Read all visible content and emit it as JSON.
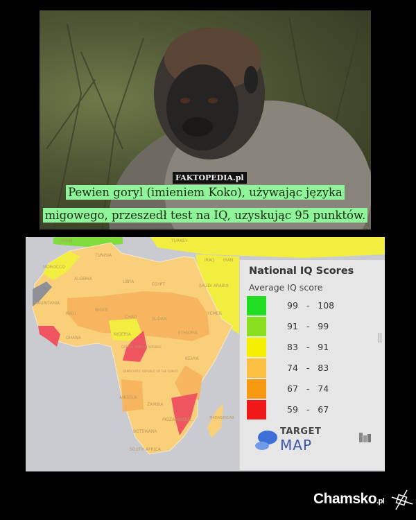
{
  "photo": {
    "watermark": "FAKTOPEDIA.pl",
    "caption_lines": [
      "Pewien goryl (imieniem Koko), używając języka",
      "migowego, przeszedł test na IQ, uzyskując 95 punktów."
    ]
  },
  "map": {
    "country_labels": [
      "TUNISIA",
      "MOROCCO",
      "ALGERIA",
      "LIBYA",
      "EGYPT",
      "SAUDI ARABIA",
      "IRAQ",
      "IRAN",
      "TURKEY",
      "SPAIN",
      "YEMEN",
      "MAURITANIA",
      "MALI",
      "NIGER",
      "CHAD",
      "SUDAN",
      "ETHIOPIA",
      "NIGERIA",
      "GHANA",
      "CENTRAL AFRICAN REPUBLIC",
      "KENYA",
      "DEMOCRATIC REPUBLIC OF THE CONGO",
      "ANGOLA",
      "ZAMBIA",
      "MOZAMBIQUE",
      "BOTSWANA",
      "SOUTH AFRICA",
      "MADAGASCAR"
    ],
    "legend": {
      "title": "National IQ Scores",
      "subtitle": "Average IQ score",
      "ranges": [
        {
          "label": "99   -   108",
          "color": "#22dd22"
        },
        {
          "label": "91   -   99",
          "color": "#88e020"
        },
        {
          "label": "83   -   91",
          "color": "#f5f000"
        },
        {
          "label": "74   -   83",
          "color": "#fbc042"
        },
        {
          "label": "67   -   74",
          "color": "#f79a12"
        },
        {
          "label": "59   -   67",
          "color": "#f01818"
        }
      ],
      "logo_line1": "TARGET",
      "logo_line2": "MAP"
    }
  },
  "footer": {
    "brand": "Chamsko",
    "brand_suffix": ".pl"
  }
}
